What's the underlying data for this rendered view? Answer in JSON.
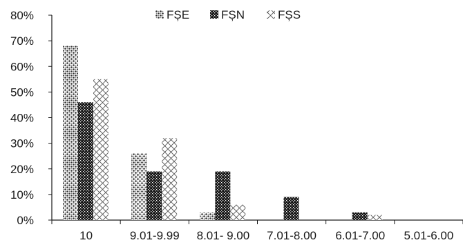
{
  "chart_data": {
    "type": "bar",
    "title": "",
    "xlabel": "",
    "ylabel": "",
    "categories": [
      "10",
      "9.01-9.99",
      "8.01- 9.00",
      "7.01-8.00",
      "6.01-7.00",
      "5.01-6.00"
    ],
    "series": [
      {
        "name": "FȘE",
        "values": [
          68,
          26,
          3,
          0,
          0,
          0
        ],
        "pattern": "dots"
      },
      {
        "name": "FȘN",
        "values": [
          46,
          19,
          19,
          9,
          3,
          0
        ],
        "pattern": "dense"
      },
      {
        "name": "FȘS",
        "values": [
          55,
          32,
          6,
          0,
          2,
          0
        ],
        "pattern": "cross"
      }
    ],
    "ylim": [
      0,
      80
    ],
    "yticks": [
      "0%",
      "10%",
      "20%",
      "30%",
      "40%",
      "50%",
      "60%",
      "70%",
      "80%"
    ],
    "grid": false,
    "legend_position": "top-center",
    "colors": {
      "ink": "#1a1a1a",
      "background": "#ffffff"
    }
  }
}
